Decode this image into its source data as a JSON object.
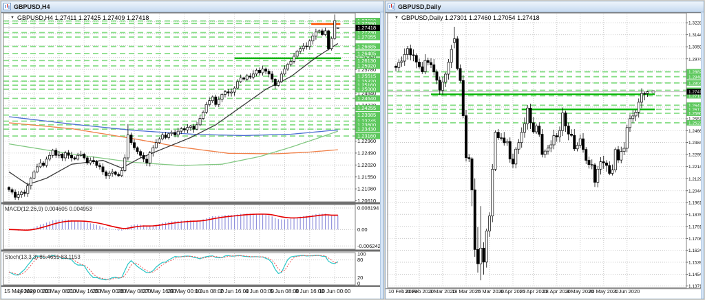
{
  "icons": {
    "dropdown": "▼"
  },
  "palette": {
    "grid": "#c9c9c9",
    "level_dash": "#71d871",
    "level_solid": "#00b400",
    "trend_orange": "#ff5200",
    "level_box": "#5dc85d",
    "silver": "#b4b4b4",
    "candle_up": "#ffffff",
    "candle_down": "#000000",
    "macd_bar": "#9090dc",
    "macd_signal": "#e60000",
    "stoch_k": "#26c6c6",
    "stoch_d": "#f05454"
  },
  "windows": [
    {
      "title": "GBPUSD,H4",
      "info": "GBPUSD,H4  1.27411 1.27425 1.27409 1.27418",
      "macd_label": "MACD(12,26,9) 0.004605 0.004953",
      "stoch_label": "Stoch(13,3,3) 85.4651 83.1153"
    },
    {
      "title": "GBPUSD,Daily",
      "info": "GBPUSD,Daily  1.27301 1.27460 1.27054 1.27418"
    }
  ],
  "chart_data": [
    {
      "type": "candlestick",
      "symbol": "GBPUSD",
      "timeframe": "H4",
      "last_bar_ohlc": [
        1.27411,
        1.27425,
        1.27409,
        1.27418
      ],
      "current": 1.27418,
      "ylim": [
        1.2057,
        1.28
      ],
      "wick": 0.0014,
      "closes": [
        1.2105,
        1.2095,
        1.2075,
        1.2085,
        1.2095,
        1.209,
        1.212,
        1.215,
        1.2175,
        1.2195,
        1.221,
        1.22,
        1.2225,
        1.224,
        1.226,
        1.224,
        1.2245,
        1.223,
        1.225,
        1.224,
        1.223,
        1.2225,
        1.224,
        1.2245,
        1.223,
        1.221,
        1.222,
        1.2215,
        1.22,
        1.2195,
        1.2175,
        1.216,
        1.217,
        1.2175,
        1.2165,
        1.216,
        1.218,
        1.223,
        1.232,
        1.229,
        1.227,
        1.2255,
        1.224,
        1.2225,
        1.221,
        1.225,
        1.227,
        1.229,
        1.2305,
        1.232,
        1.231,
        1.2325,
        1.233,
        1.232,
        1.2335,
        1.2345,
        1.234,
        1.235,
        1.2355,
        1.2343,
        1.236,
        1.2385,
        1.241,
        1.244,
        1.2455,
        1.247,
        1.244,
        1.246,
        1.248,
        1.249,
        1.2485,
        1.2489,
        1.2505,
        1.253,
        1.2545,
        1.254,
        1.2552,
        1.2548,
        1.256,
        1.2575,
        1.2565,
        1.258,
        1.2571,
        1.256,
        1.254,
        1.2515,
        1.253,
        1.256,
        1.258,
        1.2598,
        1.261,
        1.263,
        1.265,
        1.266,
        1.267,
        1.2668,
        1.269,
        1.271,
        1.2725,
        1.273,
        1.2715,
        1.273,
        1.266,
        1.27,
        1.277,
        1.27418
      ],
      "overrides": {
        "38": [
          1.223,
          1.2363,
          1.222,
          1.232
        ],
        "104": [
          1.27,
          1.2794,
          1.2695,
          1.277
        ],
        "105": [
          1.27411,
          1.27425,
          1.27409,
          1.27418
        ]
      },
      "axis_plain": [
        1.2061,
        1.2108,
        1.2155,
        1.2202,
        1.2249,
        1.2296,
        1.2343,
        1.239,
        1.2437,
        1.2484,
        1.2531,
        1.2578,
        1.2625,
        1.2672,
        1.2719,
        1.2766
      ],
      "green_levels": [
        1.2769,
        1.2759,
        1.2723,
        1.27055,
        1.26685,
        1.26405,
        1.2613,
        1.2592,
        1.25515,
        1.2532,
        1.2516,
        1.25,
        1.2464,
        1.24255,
        1.23985,
        1.23745,
        1.236,
        1.2343,
        1.2316
      ],
      "lines": [
        {
          "price": 1.2622,
          "from": 72,
          "to": 106,
          "color": "#00b400",
          "width": 2.4
        },
        {
          "price": 1.2757,
          "from": 96.5,
          "to": 105.8,
          "color": "#ff5200",
          "width": 2.6
        }
      ],
      "ma": [
        {
          "name": "blue-slow",
          "color": "#4d6fd2",
          "points": [
            [
              0,
              1.2392
            ],
            [
              20,
              1.2363
            ],
            [
              40,
              1.2338
            ],
            [
              60,
              1.2322
            ],
            [
              75,
              1.2318
            ],
            [
              90,
              1.2323
            ],
            [
              105,
              1.234
            ]
          ]
        },
        {
          "name": "orange-mid",
          "color": "#f08048",
          "points": [
            [
              0,
              1.2368
            ],
            [
              20,
              1.2345
            ],
            [
              40,
              1.2305
            ],
            [
              55,
              1.2272
            ],
            [
              70,
              1.2248
            ],
            [
              85,
              1.2246
            ],
            [
              95,
              1.2252
            ],
            [
              105,
              1.2262
            ]
          ]
        },
        {
          "name": "green-mid",
          "color": "#82c882",
          "points": [
            [
              0,
              1.2285
            ],
            [
              20,
              1.2245
            ],
            [
              40,
              1.2212
            ],
            [
              55,
              1.22
            ],
            [
              68,
              1.2205
            ],
            [
              80,
              1.2235
            ],
            [
              90,
              1.2272
            ],
            [
              98,
              1.2305
            ],
            [
              105,
              1.2335
            ]
          ]
        },
        {
          "name": "black-fast",
          "color": "#3c3c3c",
          "points": [
            [
              0,
              1.2175
            ],
            [
              6,
              1.2125
            ],
            [
              12,
              1.215
            ],
            [
              20,
              1.2205
            ],
            [
              30,
              1.222
            ],
            [
              36,
              1.219
            ],
            [
              42,
              1.223
            ],
            [
              50,
              1.227
            ],
            [
              58,
              1.231
            ],
            [
              66,
              1.236
            ],
            [
              74,
              1.243
            ],
            [
              82,
              1.25
            ],
            [
              90,
              1.255
            ],
            [
              98,
              1.2625
            ],
            [
              105,
              1.268
            ]
          ]
        }
      ],
      "time_labels": [
        "15 May 2020",
        "19 May 00:00",
        "20 May 08:00",
        "21 May 16:00",
        "25 May 00:00",
        "26 May 08:00",
        "27 May 16:00",
        "29 May 00:00",
        "1 Jun 08:00",
        "2 Jun 16:00",
        "4 Jun 00:00",
        "5 Jun 08:00",
        "8 Jun 16:00",
        "10 Jun 00:00"
      ],
      "grid_indices": [
        0,
        8,
        16,
        24,
        32,
        40,
        48,
        56,
        64,
        72,
        80,
        88,
        96,
        104
      ],
      "macd": {
        "params": "12,26,9",
        "value": 0.004605,
        "signal": 0.004953,
        "range": [
          -0.0075,
          0.0095
        ],
        "scale": [
          0.008194,
          0,
          -0.006242
        ],
        "scale_labels": [
          "0.008194",
          "0.00",
          "-0.006242"
        ]
      },
      "stoch": {
        "params": "13,3,3",
        "value": 85.4651,
        "signal": 83.1153,
        "scale": [
          100,
          80,
          20,
          0
        ]
      }
    },
    {
      "type": "candlestick",
      "symbol": "GBPUSD",
      "timeframe": "Daily",
      "last_bar_ohlc": [
        1.27301,
        1.2746,
        1.27054,
        1.27418
      ],
      "current": 1.27418,
      "marker": true,
      "ylim": [
        1.13598,
        1.3297
      ],
      "wick": 0.0042,
      "closes": [
        1.2913,
        1.2948,
        1.2958,
        1.3005,
        1.3046,
        1.3002,
        1.2998,
        1.2951,
        1.2918,
        1.2883,
        1.2962,
        1.2948,
        1.2932,
        1.2882,
        1.2823,
        1.2752,
        1.281,
        1.2866,
        1.295,
        1.304,
        1.3115,
        1.2906,
        1.2821,
        1.2573,
        1.2277,
        1.2269,
        1.2049,
        1.1629,
        1.1528,
        1.1639,
        1.154,
        1.176,
        1.1865,
        1.2195,
        1.2456,
        1.2417,
        1.2416,
        1.2382,
        1.2391,
        1.2267,
        1.2232,
        1.2337,
        1.2383,
        1.2456,
        1.2516,
        1.2627,
        1.2523,
        1.2459,
        1.25,
        1.2442,
        1.2299,
        1.2323,
        1.2344,
        1.2367,
        1.2432,
        1.2423,
        1.2468,
        1.2593,
        1.25,
        1.2443,
        1.2434,
        1.2339,
        1.2364,
        1.241,
        1.2335,
        1.2258,
        1.2228,
        1.2226,
        1.2103,
        1.2196,
        1.2248,
        1.224,
        1.2222,
        1.2166,
        1.219,
        1.2334,
        1.226,
        1.232,
        1.2343,
        1.2489,
        1.2552,
        1.2571,
        1.2598,
        1.2668,
        1.273,
        1.2725,
        1.2742
      ],
      "overrides": {
        "20": [
          1.309,
          1.32,
          1.3048,
          1.3115
        ],
        "24": [
          1.2573,
          1.2615,
          1.225,
          1.2277
        ],
        "26": [
          1.2269,
          1.228,
          1.1934,
          1.2049
        ],
        "27": [
          1.2049,
          1.213,
          1.1577,
          1.1629
        ],
        "28": [
          1.1629,
          1.1787,
          1.1466,
          1.1528
        ],
        "29": [
          1.1528,
          1.1935,
          1.1412,
          1.1639
        ],
        "30": [
          1.1639,
          1.168,
          1.1452,
          1.154
        ],
        "86": [
          1.27301,
          1.2746,
          1.27054,
          1.27418
        ]
      },
      "axis_plain": [
        1.32285,
        1.3144,
        1.3059,
        1.2974,
        1.2889,
        1.2804,
        1.2719,
        1.2634,
        1.25515,
        1.24665,
        1.2384,
        1.2299,
        1.2214,
        1.2129,
        1.2044,
        1.19615,
        1.18765,
        1.17915,
        1.17065,
        1.1624,
        1.1539,
        1.1454,
        1.13715
      ],
      "green_levels": [
        1.28825,
        1.2848,
        1.2804,
        1.2752,
        1.27135,
        1.2647,
        1.2617,
        1.259,
        1.2523
      ],
      "lines": [
        {
          "price": 1.2724,
          "from": 12,
          "to": 88.5,
          "color": "#00b400",
          "width": 2.2
        },
        {
          "price": 1.2617,
          "from": 43,
          "to": 88.5,
          "color": "#00b400",
          "width": 2.2
        }
      ],
      "time_labels": [
        "10 Feb 2020",
        "20 Feb 2020",
        "3 Mar 2020",
        "13 Mar 2020",
        "25 Mar 2020",
        "6 Apr 2020",
        "16 Apr 2020",
        "28 Apr 2020",
        "8 May 2020",
        "20 May 2020",
        "1 Jun 2020"
      ],
      "grid_indices": [
        0,
        8,
        16,
        24,
        32,
        40,
        47,
        55,
        63,
        71,
        79
      ]
    }
  ]
}
